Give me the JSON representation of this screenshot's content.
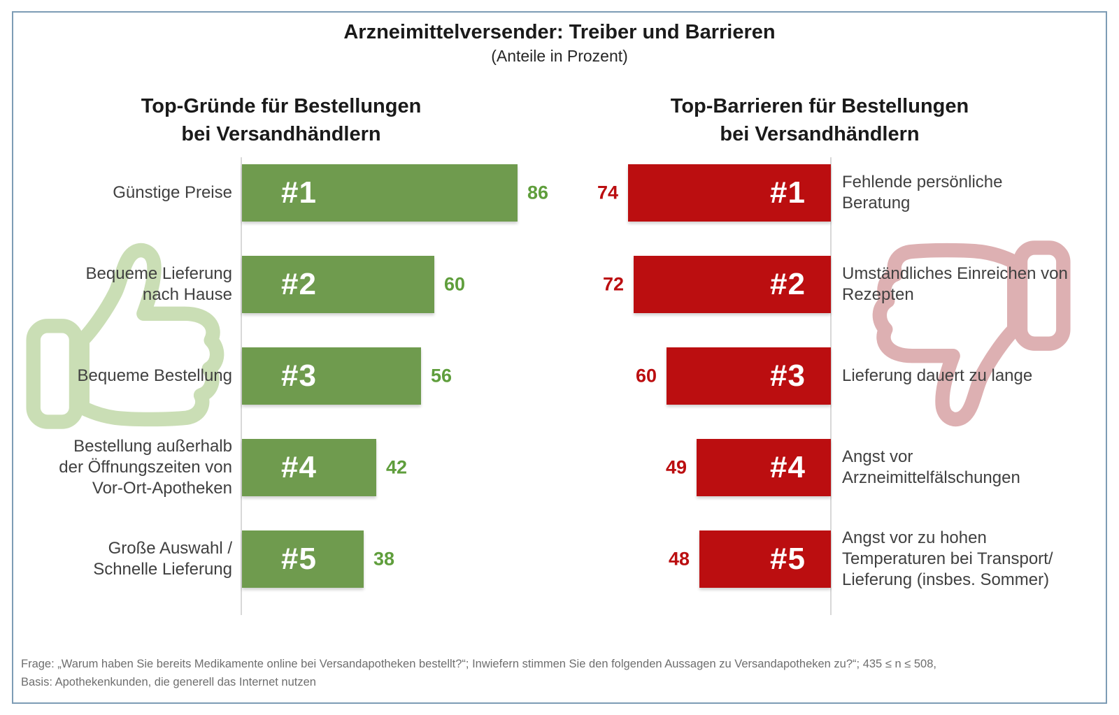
{
  "header": {
    "title": "Arzneimittelversender: Treiber und Barrieren",
    "subtitle": "(Anteile in Prozent)"
  },
  "colors": {
    "frame_border": "#7d9cb5",
    "driver_bar": "#6f9b4e",
    "driver_value": "#5f9e3c",
    "barrier_bar": "#bb0e10",
    "barrier_value": "#bb0e10",
    "thumbs_up_outline": "#cadeb5",
    "thumbs_down_outline": "#ddb0b2",
    "axis_line": "#d8d8d8"
  },
  "icons": {
    "left_watermark": "thumbs-up-icon",
    "right_watermark": "thumbs-down-icon"
  },
  "chart_data": [
    {
      "type": "bar",
      "orientation": "horizontal",
      "side": "left",
      "title": "Top-Gründe für Bestellungen\nbei Versandhändlern",
      "categories": [
        "Günstige Preise",
        "Bequeme Lieferung\nnach Hause",
        "Bequeme Bestellung",
        "Bestellung außerhalb\nder Öffnungszeiten von\nVor-Ort-Apotheken",
        "Große Auswahl /\nSchnelle Lieferung"
      ],
      "values": [
        86,
        60,
        56,
        42,
        38
      ],
      "rank_labels": [
        "#1",
        "#2",
        "#3",
        "#4",
        "#5"
      ],
      "xlim": [
        0,
        100
      ],
      "value_unit": "percent",
      "bar_color": "#6f9b4e",
      "value_label_color": "#5f9e3c"
    },
    {
      "type": "bar",
      "orientation": "horizontal",
      "side": "right",
      "title": "Top-Barrieren für Bestellungen\nbei Versandhändlern",
      "categories": [
        "Fehlende persönliche\nBeratung",
        "Umständliches Einreichen von\nRezepten",
        "Lieferung dauert zu lange",
        "Angst vor\nArzneimittelfälschungen",
        "Angst vor zu hohen\nTemperaturen bei Transport/\nLieferung (insbes. Sommer)"
      ],
      "values": [
        74,
        72,
        60,
        49,
        48
      ],
      "rank_labels": [
        "#1",
        "#2",
        "#3",
        "#4",
        "#5"
      ],
      "xlim": [
        0,
        100
      ],
      "value_unit": "percent",
      "bar_color": "#bb0e10",
      "value_label_color": "#bb0e10"
    }
  ],
  "footer": {
    "line1": "Frage: „Warum haben Sie bereits Medikamente online bei Versandapotheken bestellt?“; Inwiefern stimmen Sie den folgenden Aussagen zu Versandapotheken zu?“; 435 ≤ n ≤ 508,",
    "line2": "Basis: Apothekenkunden, die generell das Internet nutzen"
  }
}
